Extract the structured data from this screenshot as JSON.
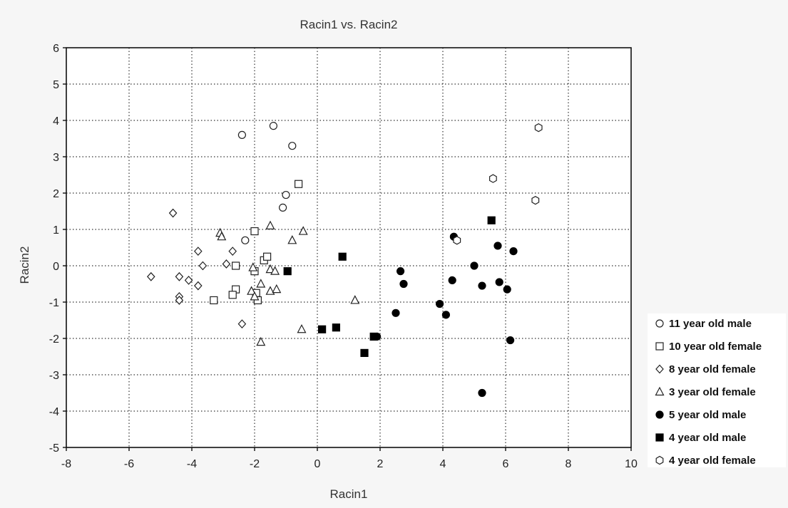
{
  "chart_data": {
    "type": "scatter",
    "title": "Racin1 vs. Racin2",
    "xlabel": "Racin1",
    "ylabel": "Racin2",
    "xlim": [
      -8,
      10
    ],
    "ylim": [
      -5,
      6
    ],
    "xticks": [
      -8,
      -6,
      -4,
      -2,
      0,
      2,
      4,
      6,
      8,
      10
    ],
    "yticks": [
      -5,
      -4,
      -3,
      -2,
      -1,
      0,
      1,
      2,
      3,
      4,
      5,
      6
    ],
    "grid": "dotted",
    "legend_position": "right",
    "series": [
      {
        "name": "11  year old male",
        "marker": "open-circle",
        "points": [
          [
            -2.4,
            3.6
          ],
          [
            -1.4,
            3.85
          ],
          [
            -0.8,
            3.3
          ],
          [
            -1.0,
            1.95
          ],
          [
            -1.1,
            1.6
          ],
          [
            -2.3,
            0.7
          ]
        ]
      },
      {
        "name": "10  year old female",
        "marker": "open-square",
        "points": [
          [
            -0.6,
            2.25
          ],
          [
            -2.0,
            0.95
          ],
          [
            -1.7,
            0.15
          ],
          [
            -2.6,
            0.0
          ],
          [
            -2.0,
            -0.15
          ],
          [
            -2.6,
            -0.65
          ],
          [
            -2.7,
            -0.8
          ],
          [
            -1.9,
            -0.95
          ],
          [
            -3.3,
            -0.95
          ],
          [
            -1.6,
            0.25
          ],
          [
            -1.95,
            -0.75
          ]
        ]
      },
      {
        "name": "8  year old female",
        "marker": "open-diamond",
        "points": [
          [
            -4.6,
            1.45
          ],
          [
            -3.8,
            0.4
          ],
          [
            -2.7,
            0.4
          ],
          [
            -3.65,
            0.0
          ],
          [
            -2.9,
            0.05
          ],
          [
            -4.4,
            -0.3
          ],
          [
            -4.1,
            -0.4
          ],
          [
            -3.8,
            -0.55
          ],
          [
            -5.3,
            -0.3
          ],
          [
            -4.4,
            -0.85
          ],
          [
            -4.4,
            -0.95
          ],
          [
            -2.4,
            -1.6
          ]
        ]
      },
      {
        "name": "3  year old female",
        "marker": "open-triangle",
        "points": [
          [
            -3.1,
            0.9
          ],
          [
            -3.05,
            0.8
          ],
          [
            -1.5,
            1.1
          ],
          [
            -0.45,
            0.95
          ],
          [
            -0.8,
            0.7
          ],
          [
            -2.05,
            -0.05
          ],
          [
            -1.5,
            -0.1
          ],
          [
            -1.35,
            -0.15
          ],
          [
            -1.8,
            -0.5
          ],
          [
            -1.5,
            -0.7
          ],
          [
            -1.3,
            -0.65
          ],
          [
            -2.1,
            -0.7
          ],
          [
            -2.0,
            -0.85
          ],
          [
            -1.8,
            -2.1
          ],
          [
            -0.5,
            -1.75
          ],
          [
            1.2,
            -0.95
          ]
        ]
      },
      {
        "name": "5  year old male",
        "marker": "filled-circle",
        "points": [
          [
            4.35,
            0.8
          ],
          [
            5.75,
            0.55
          ],
          [
            6.25,
            0.4
          ],
          [
            5.0,
            0.0
          ],
          [
            2.65,
            -0.15
          ],
          [
            4.3,
            -0.4
          ],
          [
            5.8,
            -0.45
          ],
          [
            2.75,
            -0.5
          ],
          [
            5.25,
            -0.55
          ],
          [
            6.05,
            -0.65
          ],
          [
            3.9,
            -1.05
          ],
          [
            4.1,
            -1.35
          ],
          [
            2.5,
            -1.3
          ],
          [
            1.9,
            -1.95
          ],
          [
            6.15,
            -2.05
          ],
          [
            5.25,
            -3.5
          ]
        ]
      },
      {
        "name": "4 year old male",
        "marker": "filled-square",
        "points": [
          [
            5.55,
            1.25
          ],
          [
            0.8,
            0.25
          ],
          [
            -0.95,
            -0.15
          ],
          [
            0.15,
            -1.75
          ],
          [
            0.6,
            -1.7
          ],
          [
            1.8,
            -1.95
          ],
          [
            1.5,
            -2.4
          ]
        ]
      },
      {
        "name": "4 year old female",
        "marker": "open-hexagon",
        "points": [
          [
            7.05,
            3.8
          ],
          [
            5.6,
            2.4
          ],
          [
            6.95,
            1.8
          ],
          [
            4.45,
            0.7
          ]
        ]
      }
    ]
  }
}
